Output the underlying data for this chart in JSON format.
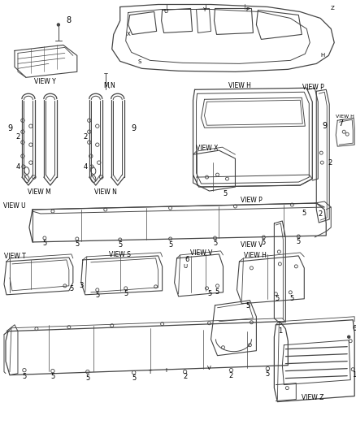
{
  "bg_color": "#ffffff",
  "line_color": "#444444",
  "fig_width": 4.38,
  "fig_height": 5.33,
  "dpi": 100,
  "labels": {
    "view_y": "VIEW Y",
    "view_m": "VIEW M",
    "view_n": "VIEW N",
    "view_x": "VIEW X",
    "view_h": "VIEW H",
    "view_h2": "VIEW H",
    "view_u": "VIEW U",
    "view_v": "VIEW V",
    "view_p": "VIEW P",
    "view_t": "VIEW T",
    "view_s": "VIEW S",
    "view_z": "VIEW Z",
    "mn": "M,N"
  }
}
